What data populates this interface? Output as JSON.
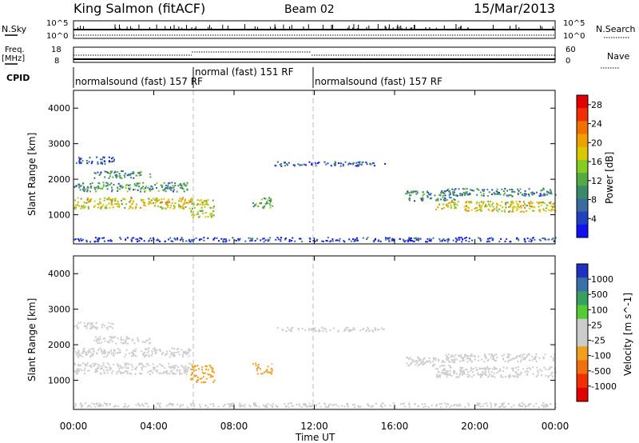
{
  "header": {
    "station": "King Salmon (fitACF)",
    "beam": "Beam 02",
    "date": "15/Mar/2013"
  },
  "top_panels": {
    "nsky_label": "N.Sky",
    "nsearch_label": "N.Search",
    "freq_label_line1": "Freq.",
    "freq_label_line2": "[MHz]",
    "nave_label": "Nave",
    "cpid_label": "CPID",
    "nsky_ticks": [
      "10^5",
      "10^0"
    ],
    "nsearch_ticks": [
      "10^5",
      "10^0"
    ],
    "freq_ticks": [
      "18",
      "8"
    ],
    "nave_ticks": [
      "60",
      "0"
    ]
  },
  "cpid_segments": [
    {
      "label": "normalsound (fast) 157 RF",
      "start_hour": 0.0,
      "end_hour": 6.0
    },
    {
      "label": "normal (fast) 151 RF",
      "start_hour": 6.0,
      "end_hour": 12.0
    },
    {
      "label": "normalsound (fast) 157 RF",
      "start_hour": 12.0,
      "end_hour": 24.0
    }
  ],
  "chart_data": [
    {
      "type": "heatmap",
      "title": "",
      "xlabel": "Time UT",
      "ylabel": "Slant Range [km]",
      "xlim": [
        0,
        24
      ],
      "ylim": [
        180,
        4500
      ],
      "x_ticks": [
        "00:00",
        "04:00",
        "08:00",
        "12:00",
        "16:00",
        "20:00",
        "00:00"
      ],
      "y_ticks": [
        "1000",
        "2000",
        "3000",
        "4000"
      ],
      "colorbar": {
        "label": "Power [dB]",
        "ticks": [
          "4",
          "8",
          "12",
          "16",
          "20",
          "24",
          "28"
        ],
        "range": [
          0,
          30
        ],
        "colors": [
          "#1010f0",
          "#2040c0",
          "#3a6aa0",
          "#3a8a6a",
          "#55aa44",
          "#88cc22",
          "#d8c800",
          "#f0a000",
          "#f07000",
          "#f03000",
          "#e00000"
        ]
      },
      "scatter_regions": [
        {
          "t_start": 0.0,
          "t_end": 5.9,
          "r_center": 1350,
          "r_width": 320,
          "value": 18
        },
        {
          "t_start": 0.0,
          "t_end": 5.8,
          "r_center": 1800,
          "r_width": 260,
          "value": 10
        },
        {
          "t_start": 1.0,
          "t_end": 3.8,
          "r_center": 2150,
          "r_width": 200,
          "value": 9
        },
        {
          "t_start": 0.0,
          "t_end": 2.0,
          "r_center": 2550,
          "r_width": 200,
          "value": 6
        },
        {
          "t_start": 5.8,
          "t_end": 7.0,
          "r_center": 1200,
          "r_width": 500,
          "value": 16
        },
        {
          "t_start": 8.9,
          "t_end": 9.9,
          "r_center": 1350,
          "r_width": 300,
          "value": 12
        },
        {
          "t_start": 10.0,
          "t_end": 15.5,
          "r_center": 2450,
          "r_width": 120,
          "value": 5
        },
        {
          "t_start": 16.5,
          "t_end": 19.0,
          "r_center": 1550,
          "r_width": 280,
          "value": 9
        },
        {
          "t_start": 18.0,
          "t_end": 24.0,
          "r_center": 1250,
          "r_width": 300,
          "value": 18
        },
        {
          "t_start": 18.5,
          "t_end": 24.0,
          "r_center": 1650,
          "r_width": 220,
          "value": 8
        },
        {
          "t_start": 0.0,
          "t_end": 24.0,
          "r_center": 320,
          "r_width": 120,
          "value": 4
        }
      ]
    },
    {
      "type": "heatmap",
      "title": "",
      "xlabel": "Time UT",
      "ylabel": "Slant Range [km]",
      "xlim": [
        0,
        24
      ],
      "ylim": [
        180,
        4500
      ],
      "x_ticks": [
        "00:00",
        "04:00",
        "08:00",
        "12:00",
        "16:00",
        "20:00",
        "00:00"
      ],
      "y_ticks": [
        "1000",
        "2000",
        "3000",
        "4000"
      ],
      "colorbar": {
        "label": "Velocity [m s^-1]",
        "ticks": [
          "1000",
          "500",
          "100",
          "25",
          "-25",
          "-100",
          "-500",
          "-1000"
        ],
        "range": [
          -1000,
          1000
        ],
        "colors": [
          "#2030c0",
          "#3a70a8",
          "#3aa060",
          "#55cc33",
          "#cccccc",
          "#cccccc",
          "#f0a020",
          "#f07010",
          "#f03000",
          "#e00000"
        ]
      },
      "scatter_regions": [
        {
          "t_start": 0.0,
          "t_end": 5.9,
          "r_center": 1350,
          "r_width": 320,
          "value": 0
        },
        {
          "t_start": 0.0,
          "t_end": 5.8,
          "r_center": 1800,
          "r_width": 260,
          "value": 0
        },
        {
          "t_start": 1.0,
          "t_end": 3.8,
          "r_center": 2150,
          "r_width": 200,
          "value": 0
        },
        {
          "t_start": 0.0,
          "t_end": 2.0,
          "r_center": 2550,
          "r_width": 200,
          "value": 0
        },
        {
          "t_start": 5.8,
          "t_end": 7.0,
          "r_center": 1200,
          "r_width": 500,
          "value": -300
        },
        {
          "t_start": 8.9,
          "t_end": 9.9,
          "r_center": 1350,
          "r_width": 300,
          "value": -250
        },
        {
          "t_start": 10.0,
          "t_end": 15.5,
          "r_center": 2450,
          "r_width": 120,
          "value": 0
        },
        {
          "t_start": 16.5,
          "t_end": 19.0,
          "r_center": 1550,
          "r_width": 280,
          "value": 0
        },
        {
          "t_start": 18.0,
          "t_end": 24.0,
          "r_center": 1250,
          "r_width": 300,
          "value": 0
        },
        {
          "t_start": 18.5,
          "t_end": 24.0,
          "r_center": 1650,
          "r_width": 220,
          "value": 0
        },
        {
          "t_start": 0.0,
          "t_end": 24.0,
          "r_center": 320,
          "r_width": 120,
          "value": 60
        }
      ]
    }
  ]
}
